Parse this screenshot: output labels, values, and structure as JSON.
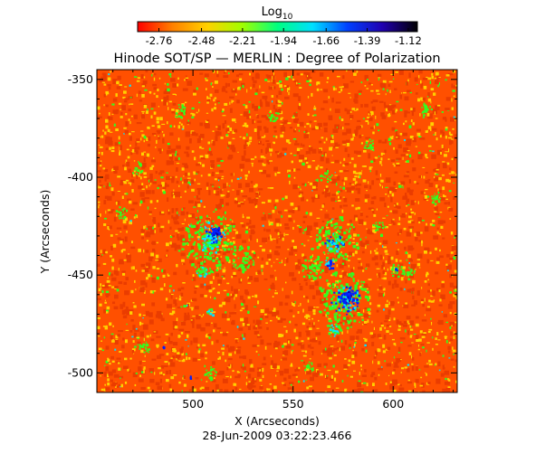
{
  "colorbar": {
    "label_main": "Log",
    "label_sub": "10",
    "ticks": [
      "-2.76",
      "-2.48",
      "-2.21",
      "-1.94",
      "-1.66",
      "-1.39",
      "-1.12"
    ],
    "tick_values": [
      -2.76,
      -2.48,
      -2.21,
      -1.94,
      -1.66,
      -1.39,
      -1.12
    ],
    "colormap": [
      "#ff0000",
      "#ff8000",
      "#ffd200",
      "#a0ff00",
      "#00ff80",
      "#00e0ff",
      "#0040ff",
      "#2000b0",
      "#000000"
    ]
  },
  "title": "Hinode SOT/SP — MERLIN : Degree of Polarization",
  "x_axis": {
    "label": "X (Arcseconds)",
    "ticks": [
      "500",
      "550",
      "600"
    ],
    "tick_values": [
      500,
      550,
      600
    ],
    "range": [
      452,
      632
    ]
  },
  "y_axis": {
    "label": "Y (Arcseconds)",
    "ticks": [
      "-350",
      "-400",
      "-450",
      "-500"
    ],
    "tick_values": [
      -350,
      -400,
      -450,
      -500
    ],
    "range": [
      -510,
      -345
    ]
  },
  "timestamp": "28-Jun-2009 03:22:23.466",
  "map_colors": {
    "background": "#ff5000",
    "dark_orange": "#ea3c00",
    "yellow": "#ffd000",
    "green": "#30ff20",
    "cyan": "#00e8ff",
    "blue": "#0020ff",
    "navy": "#1000a0"
  }
}
